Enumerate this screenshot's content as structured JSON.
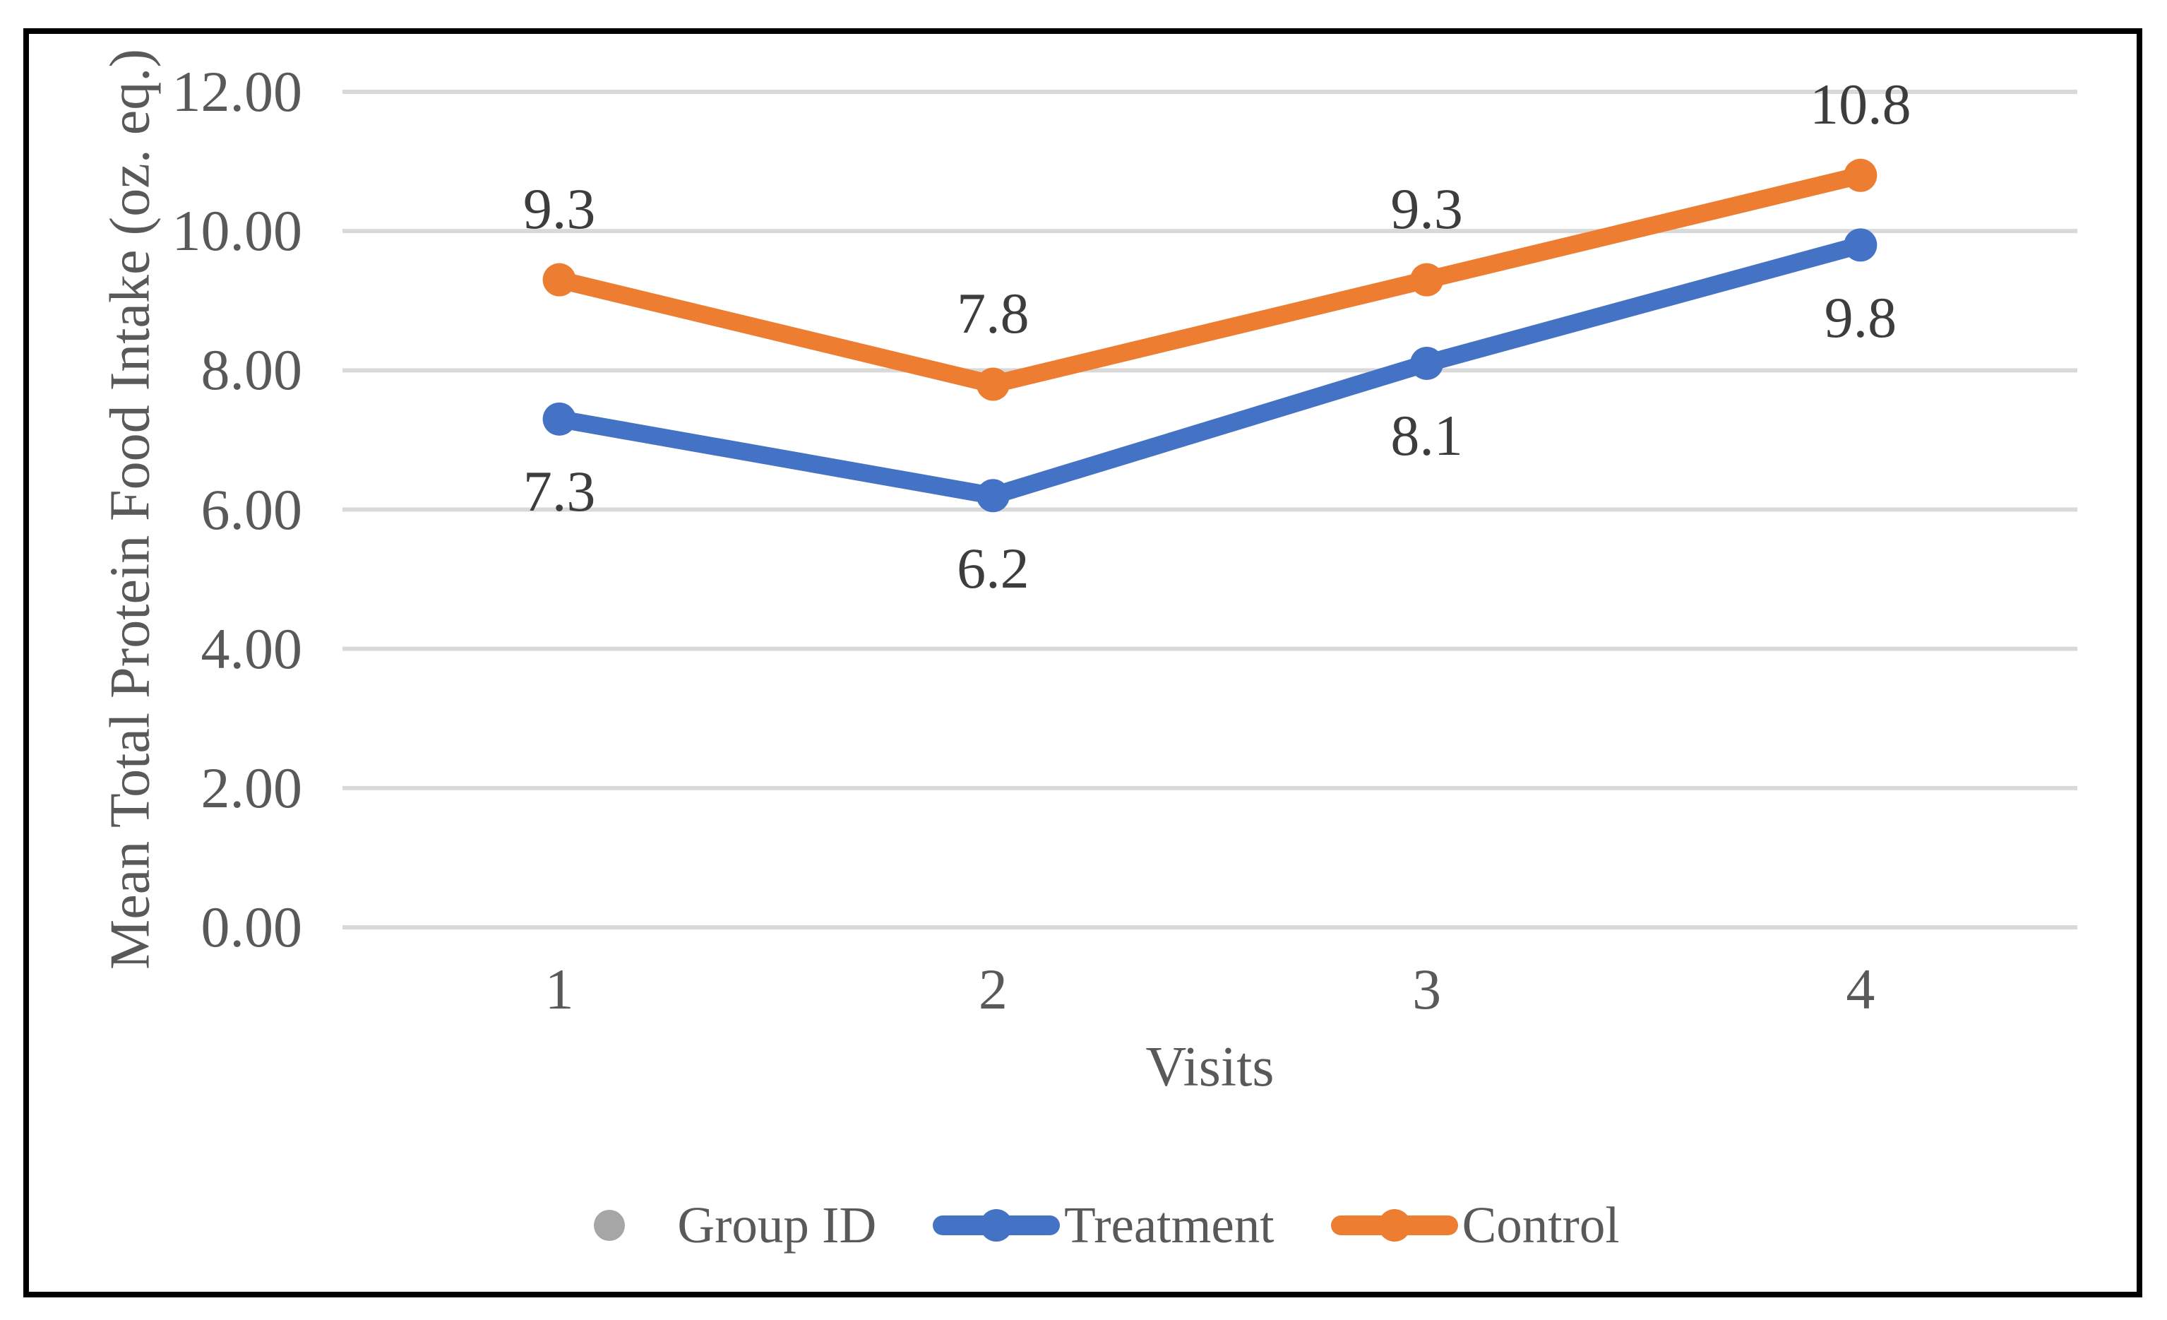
{
  "chart_data": {
    "type": "line",
    "title": "",
    "xlabel": "Visits",
    "ylabel": "Mean Total Protein Food Intake (oz. eq.)",
    "categories": [
      "1",
      "2",
      "3",
      "4"
    ],
    "series": [
      {
        "name": "Group ID",
        "color": "#A6A6A6",
        "values": [],
        "labels": [],
        "legend_key": "marker-only",
        "label_side": "none"
      },
      {
        "name": "Treatment",
        "color": "#4472C4",
        "values": [
          7.3,
          6.2,
          8.1,
          9.8
        ],
        "labels": [
          "7.3",
          "6.2",
          "8.1",
          "9.8"
        ],
        "legend_key": "line-marker",
        "label_side": "below"
      },
      {
        "name": "Control",
        "color": "#ED7D31",
        "values": [
          9.3,
          7.8,
          9.3,
          10.8
        ],
        "labels": [
          "9.3",
          "7.8",
          "9.3",
          "10.8"
        ],
        "legend_key": "line-marker",
        "label_side": "above"
      }
    ],
    "y_ticks": [
      {
        "value": 0,
        "label": "0.00"
      },
      {
        "value": 2,
        "label": "2.00"
      },
      {
        "value": 4,
        "label": "4.00"
      },
      {
        "value": 6,
        "label": "6.00"
      },
      {
        "value": 8,
        "label": "8.00"
      },
      {
        "value": 10,
        "label": "10.00"
      },
      {
        "value": 12,
        "label": "12.00"
      }
    ],
    "ylim": [
      0,
      12
    ],
    "grid": true,
    "gridline_color": "#D9D9D9",
    "axis_text_color": "#595959",
    "data_label_color": "#3D3D3D",
    "legend_position": "bottom"
  }
}
